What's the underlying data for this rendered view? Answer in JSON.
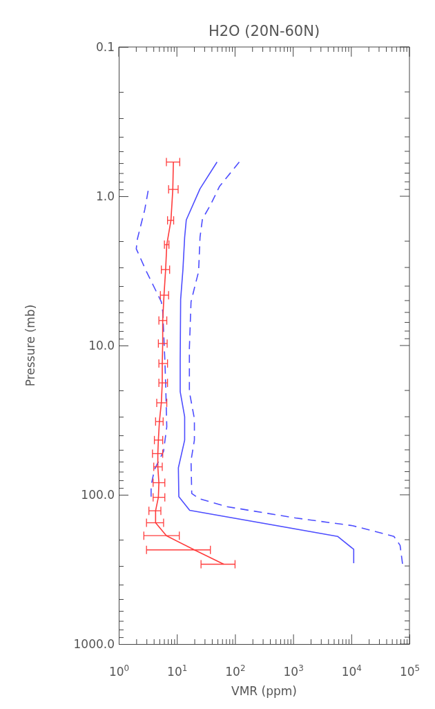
{
  "chart_data": {
    "type": "line",
    "title": "H2O (20N-60N)",
    "xlabel": "VMR (ppm)",
    "ylabel": "Pressure (mb)",
    "log": "xy",
    "grid": false,
    "marker": "none",
    "xlim": [
      1,
      100000
    ],
    "ylim": [
      1000,
      0.1
    ],
    "xticks": [
      {
        "value": 1,
        "label": "10$^{0}$"
      },
      {
        "value": 10,
        "label": "10$^{1}$"
      },
      {
        "value": 100,
        "label": "10$^{2}$"
      },
      {
        "value": 1000,
        "label": "10$^{3}$"
      },
      {
        "value": 10000,
        "label": "10$^{4}$"
      },
      {
        "value": 100000,
        "label": "10$^{5}$"
      },
      {
        "value": 2,
        "label": null
      },
      {
        "value": 3,
        "label": null
      },
      {
        "value": 4,
        "label": null
      },
      {
        "value": 5,
        "label": null
      },
      {
        "value": 6,
        "label": null
      },
      {
        "value": 7,
        "label": null
      },
      {
        "value": 8,
        "label": null
      },
      {
        "value": 9,
        "label": null
      },
      {
        "value": 20,
        "label": null
      },
      {
        "value": 30,
        "label": null
      },
      {
        "value": 40,
        "label": null
      },
      {
        "value": 50,
        "label": null
      },
      {
        "value": 60,
        "label": null
      },
      {
        "value": 70,
        "label": null
      },
      {
        "value": 80,
        "label": null
      },
      {
        "value": 90,
        "label": null
      },
      {
        "value": 200,
        "label": null
      },
      {
        "value": 300,
        "label": null
      },
      {
        "value": 400,
        "label": null
      },
      {
        "value": 500,
        "label": null
      },
      {
        "value": 600,
        "label": null
      },
      {
        "value": 700,
        "label": null
      },
      {
        "value": 800,
        "label": null
      },
      {
        "value": 900,
        "label": null
      },
      {
        "value": 2000,
        "label": null
      },
      {
        "value": 3000,
        "label": null
      },
      {
        "value": 4000,
        "label": null
      },
      {
        "value": 5000,
        "label": null
      },
      {
        "value": 6000,
        "label": null
      },
      {
        "value": 7000,
        "label": null
      },
      {
        "value": 8000,
        "label": null
      },
      {
        "value": 9000,
        "label": null
      },
      {
        "value": 20000,
        "label": null
      },
      {
        "value": 30000,
        "label": null
      },
      {
        "value": 40000,
        "label": null
      },
      {
        "value": 50000,
        "label": null
      },
      {
        "value": 60000,
        "label": null
      },
      {
        "value": 70000,
        "label": null
      },
      {
        "value": 80000,
        "label": null
      },
      {
        "value": 90000,
        "label": null
      }
    ],
    "yticks": [
      {
        "value": 0.1,
        "label": "0.1"
      },
      {
        "value": 1,
        "label": "1.0"
      },
      {
        "value": 10,
        "label": "10.0"
      },
      {
        "value": 100,
        "label": "100.0"
      },
      {
        "value": 1000,
        "label": "1000.0"
      },
      {
        "value": 0.2,
        "label": null
      },
      {
        "value": 0.3,
        "label": null
      },
      {
        "value": 0.4,
        "label": null
      },
      {
        "value": 0.5,
        "label": null
      },
      {
        "value": 0.6,
        "label": null
      },
      {
        "value": 0.7,
        "label": null
      },
      {
        "value": 0.8,
        "label": null
      },
      {
        "value": 0.9,
        "label": null
      },
      {
        "value": 2,
        "label": null
      },
      {
        "value": 3,
        "label": null
      },
      {
        "value": 4,
        "label": null
      },
      {
        "value": 5,
        "label": null
      },
      {
        "value": 6,
        "label": null
      },
      {
        "value": 7,
        "label": null
      },
      {
        "value": 8,
        "label": null
      },
      {
        "value": 9,
        "label": null
      },
      {
        "value": 20,
        "label": null
      },
      {
        "value": 30,
        "label": null
      },
      {
        "value": 40,
        "label": null
      },
      {
        "value": 50,
        "label": null
      },
      {
        "value": 60,
        "label": null
      },
      {
        "value": 70,
        "label": null
      },
      {
        "value": 80,
        "label": null
      },
      {
        "value": 90,
        "label": null
      },
      {
        "value": 200,
        "label": null
      },
      {
        "value": 300,
        "label": null
      },
      {
        "value": 400,
        "label": null
      },
      {
        "value": 500,
        "label": null
      },
      {
        "value": 600,
        "label": null
      },
      {
        "value": 700,
        "label": null
      },
      {
        "value": 800,
        "label": null
      },
      {
        "value": 900,
        "label": null
      }
    ],
    "series": [
      {
        "color": "#4d4dff",
        "line_style": "solid",
        "x": [
          49,
          25,
          14.5,
          13.6,
          12.7,
          11.6,
          11.4,
          11.4,
          13.6,
          13.6,
          10.6,
          10.8,
          16.6,
          5800,
          11000,
          11000
        ],
        "values": [
          0.59,
          0.89,
          1.44,
          1.88,
          3.1,
          4.9,
          12.4,
          20.4,
          30,
          43,
          66,
          103,
          127,
          190,
          232,
          287
        ]
      },
      {
        "color": "#4d4dff",
        "line_style": "dashed",
        "x": [
          118,
          54,
          38,
          27.5,
          25,
          23.6,
          20.4,
          17.5,
          16.4,
          16.4,
          20,
          20,
          17.5,
          18,
          24,
          71.5,
          1090,
          10500,
          54000,
          69000,
          76000
        ],
        "values": [
          0.59,
          0.86,
          1.14,
          1.42,
          1.88,
          3.2,
          4.0,
          5.1,
          10.4,
          20.4,
          31,
          43,
          59,
          98,
          106,
          120,
          143,
          161,
          190,
          218,
          290
        ]
      },
      {
        "color": "#4d4dff",
        "line_style": "dashed",
        "x": [
          3.2,
          2.8,
          2.1,
          2.0,
          3.0,
          5.4,
          5.7,
          6.2,
          6.4,
          6.7,
          5.9,
          4.1,
          3.6,
          3.6
        ],
        "values": [
          0.92,
          1.23,
          1.92,
          2.25,
          3.2,
          5.1,
          5.9,
          12.4,
          17.8,
          35,
          51,
          68,
          87,
          103
        ]
      },
      {
        "color": "#ff3b3b",
        "line_style": "solid",
        "x": [
          8.7,
          8.5,
          7.9,
          6.7,
          6.4,
          6.0,
          5.7,
          5.7,
          5.6,
          5.6,
          5.4,
          5.0,
          4.8,
          4.7,
          4.7,
          4.9,
          4.8,
          4.3,
          4.3,
          6.6,
          20,
          64
        ],
        "values": [
          0.59,
          0.9,
          1.45,
          2.11,
          3.1,
          4.6,
          6.8,
          9.7,
          13.2,
          17.8,
          24.2,
          32.3,
          43,
          53,
          65,
          83,
          104,
          128,
          154,
          188,
          234,
          292
        ],
        "xerrors": [
          [
            6.6,
            11.2
          ],
          [
            7.2,
            10.5
          ],
          [
            6.9,
            8.8
          ],
          [
            6.1,
            7.3
          ],
          [
            5.4,
            7.5
          ],
          [
            5.2,
            7.2
          ],
          [
            4.9,
            6.7
          ],
          [
            4.8,
            6.8
          ],
          [
            4.9,
            6.9
          ],
          [
            4.9,
            6.9
          ],
          [
            4.5,
            6.7
          ],
          [
            4.3,
            5.8
          ],
          [
            4.1,
            5.7
          ],
          [
            3.8,
            5.7
          ],
          [
            4.0,
            5.6
          ],
          [
            3.9,
            6.2
          ],
          [
            3.9,
            6.2
          ],
          [
            3.3,
            5.3
          ],
          [
            3.0,
            5.9
          ],
          [
            2.7,
            11.0
          ],
          [
            3.0,
            37.7
          ],
          [
            26,
            100
          ]
        ]
      }
    ]
  }
}
